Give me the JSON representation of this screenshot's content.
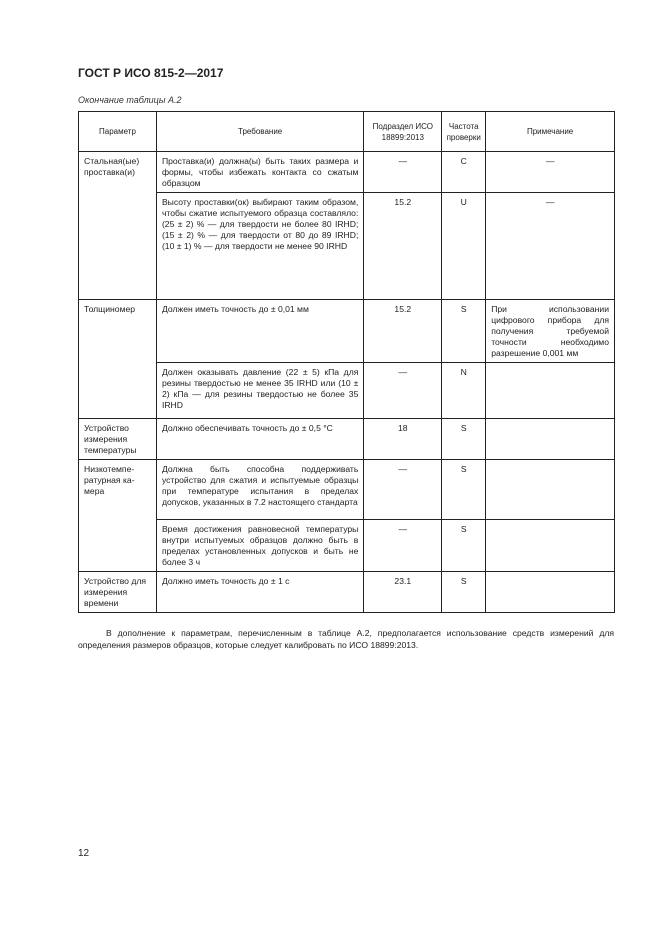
{
  "header": {
    "title": "ГОСТ Р ИСО 815-2—2017"
  },
  "caption": "Окончание таблицы А.2",
  "table": {
    "columns": [
      "Параметр",
      "Требование",
      "Подраздел ИСО 18899:2013",
      "Частота проверки",
      "Примечание"
    ],
    "groups": [
      {
        "param": "Стальная(ые) проставка(и)",
        "rows": [
          {
            "req": "Проставка(и) должна(ы) быть таких раз­мера и формы, чтобы избежать контакта со сжатым образцом",
            "sub": "—",
            "freq": "C",
            "note": "—"
          },
          {
            "req": "Высоту проставки(ок) выбирают таким об­разом, чтобы сжатие испытуемого образ­ца составляло: (25 ± 2) % — для твердости не более 80 IRHD; (15 ± 2) % — для твердости от 80 до 89 IRHD; (10 ± 1) % — для твердости не менее 90 IRHD",
            "sub": "15.2",
            "freq": "U",
            "note": "—"
          }
        ]
      },
      {
        "param": "Толщиномер",
        "rows": [
          {
            "req": "Должен иметь точность до ± 0,01 мм",
            "sub": "15.2",
            "freq": "S",
            "note": "При использовании цифрового прибора для получения требуемой точности необходимо разрешение 0,001 мм"
          },
          {
            "req": "Должен оказывать давление (22 ± 5) кПа для резины твердостью не менее 35 IRHD или (10 ± 2) кПа — для резины твердос­тью не более 35 IRHD",
            "sub": "—",
            "freq": "N",
            "note": ""
          }
        ]
      },
      {
        "param": "Устройство измерения температуры",
        "rows": [
          {
            "req": "Должно обеспечивать точность до ± 0,5 °С",
            "sub": "18",
            "freq": "S",
            "note": ""
          }
        ]
      },
      {
        "param": "Низкотемпе­ратурная ка­мера",
        "rows": [
          {
            "req": "Должна быть способна поддерживать устройство для сжатия и испытуемые об­разцы при температуре испытания в пре­делах допусков, указанных в 7.2 настоящего стандарта",
            "sub": "—",
            "freq": "S",
            "note": ""
          },
          {
            "req": "Время достижения равновесной темпера­туры внутри испытуемых образцов должно быть в пределах установленных допусков и быть не более 3 ч",
            "sub": "—",
            "freq": "S",
            "note": ""
          }
        ]
      },
      {
        "param": "Устройство для измере­ния времени",
        "rows": [
          {
            "req": "Должно иметь точность до ± 1 с",
            "sub": "23.1",
            "freq": "S",
            "note": ""
          }
        ]
      }
    ]
  },
  "paragraph": "В дополнение к параметрам, перечисленным в таблице А.2, предполагается использование средств измере­ний для определения размеров образцов, которые следует калибровать по ИСО 18899:2013.",
  "page_number": "12"
}
